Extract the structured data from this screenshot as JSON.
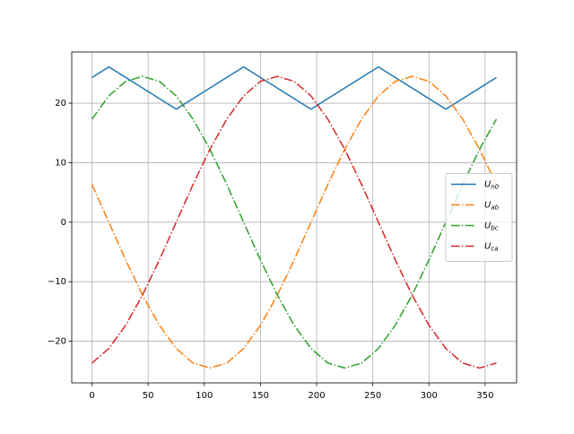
{
  "chart_data": {
    "type": "line",
    "xlim": [
      -18,
      378
    ],
    "ylim": [
      -27,
      28.6
    ],
    "xticks": [
      0,
      50,
      100,
      150,
      200,
      250,
      300,
      350
    ],
    "yticks": [
      {
        "value": -20,
        "label": "−20"
      },
      {
        "value": -10,
        "label": "−10"
      },
      0,
      10,
      20
    ],
    "grid": true,
    "legend": "center right",
    "series": [
      {
        "name": "Un0",
        "color": "#1f77b4",
        "linestyle": "solid",
        "x": [
          0,
          15,
          75,
          135,
          195,
          255,
          315,
          360
        ],
        "values": [
          24.3,
          26.1,
          19,
          26.1,
          19,
          26.1,
          19,
          24.3
        ]
      },
      {
        "name": "Uab",
        "color": "#ff7f0e",
        "linestyle": "dashdot",
        "x": [
          0,
          15,
          30,
          45,
          60,
          75,
          90,
          105,
          120,
          135,
          150,
          165,
          180,
          195,
          210,
          225,
          240,
          255,
          270,
          285,
          300,
          315,
          330,
          345,
          360
        ],
        "values": [
          6.34,
          0,
          -6.34,
          -12.25,
          -17.32,
          -21.22,
          -23.67,
          -24.5,
          -23.67,
          -21.22,
          -17.32,
          -12.25,
          -6.34,
          0,
          6.34,
          12.25,
          17.32,
          21.22,
          23.67,
          24.5,
          23.67,
          21.22,
          17.32,
          12.25,
          6.34
        ]
      },
      {
        "name": "Ubc",
        "color": "#2ca02c",
        "linestyle": "dashdot",
        "x": [
          0,
          15,
          30,
          45,
          60,
          75,
          90,
          105,
          120,
          135,
          150,
          165,
          180,
          195,
          210,
          225,
          240,
          255,
          270,
          285,
          300,
          315,
          330,
          345,
          360
        ],
        "values": [
          17.32,
          21.22,
          23.67,
          24.5,
          23.67,
          21.22,
          17.32,
          12.25,
          6.34,
          0,
          -6.34,
          -12.25,
          -17.32,
          -21.22,
          -23.67,
          -24.5,
          -23.67,
          -21.22,
          -17.32,
          -12.25,
          -6.34,
          0,
          6.34,
          12.25,
          17.32
        ]
      },
      {
        "name": "Uca",
        "color": "#d62728",
        "linestyle": "dashdot",
        "x": [
          0,
          15,
          30,
          45,
          60,
          75,
          90,
          105,
          120,
          135,
          150,
          165,
          180,
          195,
          210,
          225,
          240,
          255,
          270,
          285,
          300,
          315,
          330,
          345,
          360
        ],
        "values": [
          -23.67,
          -21.22,
          -17.32,
          -12.25,
          -6.34,
          0,
          6.34,
          12.25,
          17.32,
          21.22,
          23.67,
          24.5,
          23.67,
          21.22,
          17.32,
          12.25,
          6.34,
          0,
          -6.34,
          -12.25,
          -17.32,
          -21.22,
          -23.67,
          -24.5,
          -23.67
        ]
      }
    ]
  }
}
